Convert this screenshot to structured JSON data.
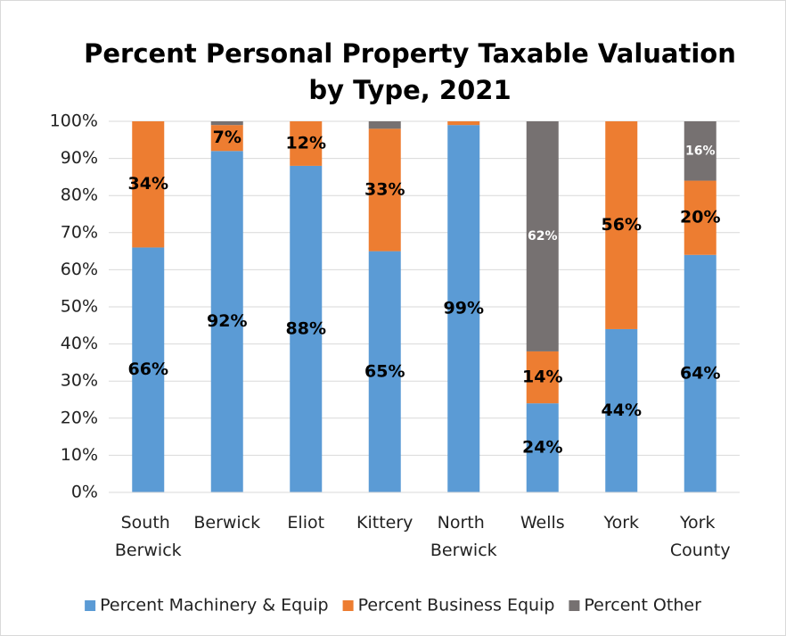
{
  "chart_data": {
    "type": "stacked_bar",
    "title": "Percent Personal Property Taxable Valuation by Type, 2021",
    "categories": [
      "South Berwick",
      "Berwick",
      "Eliot",
      "Kittery",
      "North Berwick",
      "Wells",
      "York",
      "York County"
    ],
    "series": [
      {
        "name": "Percent Machinery & Equip",
        "color": "#5b9bd5",
        "label_color": "#000000",
        "values": [
          66,
          92,
          88,
          65,
          99,
          24,
          44,
          64
        ],
        "value_labels": [
          "66%",
          "92%",
          "88%",
          "65%",
          "99%",
          "24%",
          "44%",
          "64%"
        ]
      },
      {
        "name": "Percent Business Equip",
        "color": "#ed7d31",
        "label_color": "#000000",
        "values": [
          34,
          7,
          12,
          33,
          1,
          14,
          56,
          20
        ],
        "value_labels": [
          "34%",
          "7%",
          "12%",
          "33%",
          null,
          "14%",
          "56%",
          "20%"
        ]
      },
      {
        "name": "Percent Other",
        "color": "#767171",
        "label_color": "#ffffff",
        "values": [
          0,
          1,
          0,
          2,
          0,
          62,
          0,
          16
        ],
        "value_labels": [
          null,
          null,
          null,
          null,
          null,
          "62%",
          null,
          "16%"
        ]
      }
    ],
    "ylim": [
      0,
      100
    ],
    "yticks": [
      {
        "value": 0,
        "label": "0%"
      },
      {
        "value": 10,
        "label": "10%"
      },
      {
        "value": 20,
        "label": "20%"
      },
      {
        "value": 30,
        "label": "30%"
      },
      {
        "value": 40,
        "label": "40%"
      },
      {
        "value": 50,
        "label": "50%"
      },
      {
        "value": 60,
        "label": "60%"
      },
      {
        "value": 70,
        "label": "70%"
      },
      {
        "value": 80,
        "label": "80%"
      },
      {
        "value": 90,
        "label": "90%"
      },
      {
        "value": 100,
        "label": "100%"
      }
    ],
    "grid": true,
    "legend": "bottom"
  }
}
